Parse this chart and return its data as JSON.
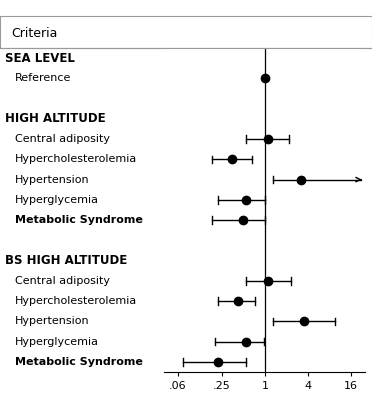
{
  "title": "Criteria",
  "rows": [
    {
      "type": "header",
      "label": "SEA LEVEL",
      "bold": true,
      "indent": 0
    },
    {
      "type": "item",
      "label": "Reference",
      "bold": false,
      "indent": 1,
      "est": 1.0,
      "lo": 1.0,
      "hi": 1.0,
      "is_ref": true,
      "arrow_hi": false
    },
    {
      "type": "spacer"
    },
    {
      "type": "header",
      "label": "HIGH ALTITUDE",
      "bold": true,
      "indent": 0
    },
    {
      "type": "item",
      "label": "Central adiposity",
      "bold": false,
      "indent": 1,
      "est": 1.1,
      "lo": 0.55,
      "hi": 2.2,
      "is_ref": false,
      "arrow_hi": false
    },
    {
      "type": "item",
      "label": "Hypercholesterolemia",
      "bold": false,
      "indent": 1,
      "est": 0.35,
      "lo": 0.18,
      "hi": 0.65,
      "is_ref": false,
      "arrow_hi": false
    },
    {
      "type": "item",
      "label": "Hypertension",
      "bold": false,
      "indent": 1,
      "est": 3.2,
      "lo": 1.3,
      "hi": 20.0,
      "is_ref": false,
      "arrow_hi": true
    },
    {
      "type": "item",
      "label": "Hyperglycemia",
      "bold": false,
      "indent": 1,
      "est": 0.55,
      "lo": 0.22,
      "hi": 1.0,
      "is_ref": false,
      "arrow_hi": false
    },
    {
      "type": "item",
      "label": "Metabolic Syndrome",
      "bold": true,
      "indent": 1,
      "est": 0.5,
      "lo": 0.18,
      "hi": 1.0,
      "is_ref": false,
      "arrow_hi": false
    },
    {
      "type": "spacer"
    },
    {
      "type": "header",
      "label": "BS HIGH ALTITUDE",
      "bold": true,
      "indent": 0
    },
    {
      "type": "item",
      "label": "Central adiposity",
      "bold": false,
      "indent": 1,
      "est": 1.1,
      "lo": 0.55,
      "hi": 2.3,
      "is_ref": false,
      "arrow_hi": false
    },
    {
      "type": "item",
      "label": "Hypercholesterolemia",
      "bold": false,
      "indent": 1,
      "est": 0.42,
      "lo": 0.22,
      "hi": 0.72,
      "is_ref": false,
      "arrow_hi": false
    },
    {
      "type": "item",
      "label": "Hypertension",
      "bold": false,
      "indent": 1,
      "est": 3.5,
      "lo": 1.3,
      "hi": 9.5,
      "is_ref": false,
      "arrow_hi": false
    },
    {
      "type": "item",
      "label": "Hyperglycemia",
      "bold": false,
      "indent": 1,
      "est": 0.55,
      "lo": 0.2,
      "hi": 0.98,
      "is_ref": false,
      "arrow_hi": false
    },
    {
      "type": "item",
      "label": "Metabolic Syndrome",
      "bold": true,
      "indent": 1,
      "est": 0.22,
      "lo": 0.07,
      "hi": 0.55,
      "is_ref": false,
      "arrow_hi": false
    }
  ],
  "xticks": [
    0.06,
    0.25,
    1,
    4,
    16
  ],
  "xticklabels": [
    ".06",
    ".25",
    "1",
    "4",
    "16"
  ],
  "xlim": [
    0.038,
    25
  ],
  "ref_line": 1.0,
  "dot_size": 6,
  "figsize": [
    3.72,
    4.0
  ],
  "dpi": 100
}
